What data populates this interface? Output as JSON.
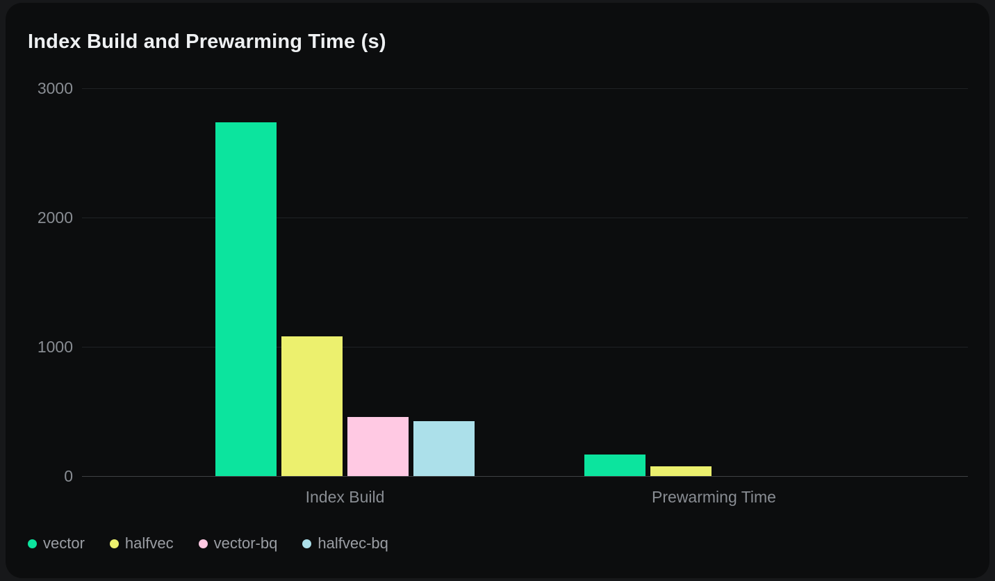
{
  "page": {
    "background": "#17181a",
    "card_background": "#0c0d0e"
  },
  "chart_data": {
    "type": "bar",
    "title": "Index Build and Prewarming Time (s)",
    "categories": [
      "Index Build",
      "Prewarming Time"
    ],
    "series": [
      {
        "name": "vector",
        "color": "#0ce49e",
        "values": [
          2737,
          167
        ]
      },
      {
        "name": "halfvec",
        "color": "#ecf06e",
        "values": [
          1081,
          75
        ]
      },
      {
        "name": "vector-bq",
        "color": "#ffc9e3",
        "values": [
          457,
          0
        ]
      },
      {
        "name": "halfvec-bq",
        "color": "#ace0ea",
        "values": [
          425,
          0
        ]
      }
    ],
    "ylim": [
      0,
      3000
    ],
    "y_ticks": [
      0,
      1000,
      2000,
      3000
    ],
    "grid": true,
    "legend_position": "bottom-left",
    "axis_text_color": "#898d93",
    "legend_text_color": "#9b9ea4",
    "grid_color": "#202225",
    "baseline_color": "#3f4245"
  }
}
